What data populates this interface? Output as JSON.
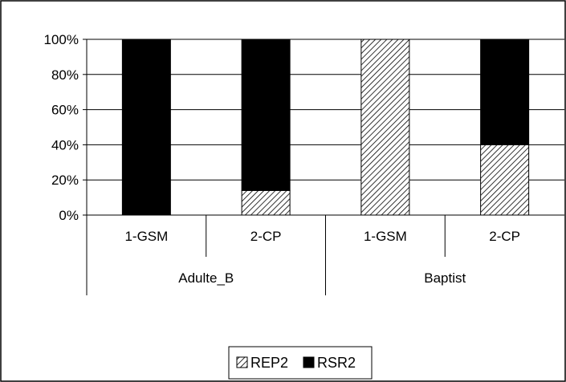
{
  "chart_data": {
    "type": "bar",
    "stacked": true,
    "percent_stacked": true,
    "groups": [
      {
        "label": "Adulte_B",
        "categories": [
          "1-GSM",
          "2-CP"
        ]
      },
      {
        "label": "Baptist",
        "categories": [
          "1-GSM",
          "2-CP"
        ]
      }
    ],
    "categories": [
      "1-GSM",
      "2-CP",
      "1-GSM",
      "2-CP"
    ],
    "series": [
      {
        "name": "REP2",
        "values": [
          0,
          14,
          100,
          40
        ],
        "pattern": "diagonal-hatch",
        "color": "#ffffff"
      },
      {
        "name": "RSR2",
        "values": [
          100,
          86,
          0,
          60
        ],
        "pattern": "solid",
        "color": "#000000"
      }
    ],
    "yticks": [
      "0%",
      "20%",
      "40%",
      "60%",
      "80%",
      "100%"
    ],
    "ylim": [
      0,
      100
    ],
    "grid": true,
    "legend_position": "bottom",
    "title": "",
    "xlabel": "",
    "ylabel": ""
  }
}
